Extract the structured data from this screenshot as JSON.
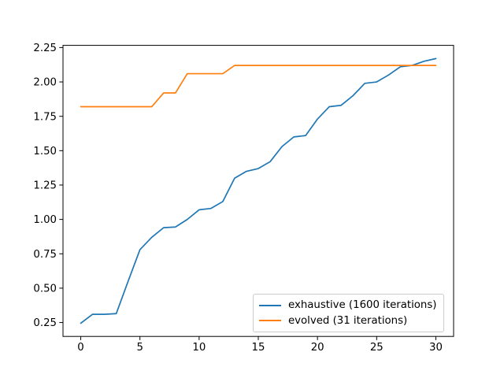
{
  "figure": {
    "background": "#ffffff",
    "axes_edge_color": "#000000",
    "tick_color": "#000000"
  },
  "chart_data": {
    "type": "line",
    "title": "",
    "xlabel": "",
    "ylabel": "",
    "grid": false,
    "xlim": [
      -1.5,
      31.5
    ],
    "ylim": [
      0.149,
      2.266
    ],
    "x_ticks": [
      "0",
      "5",
      "10",
      "15",
      "20",
      "25",
      "30"
    ],
    "x_tick_values": [
      0,
      5,
      10,
      15,
      20,
      25,
      30
    ],
    "y_ticks": [
      "0.25",
      "0.50",
      "0.75",
      "1.00",
      "1.25",
      "1.50",
      "1.75",
      "2.00",
      "2.25"
    ],
    "y_tick_values": [
      0.25,
      0.5,
      0.75,
      1.0,
      1.25,
      1.5,
      1.75,
      2.0,
      2.25
    ],
    "x": [
      0,
      1,
      2,
      3,
      4,
      5,
      6,
      7,
      8,
      9,
      10,
      11,
      12,
      13,
      14,
      15,
      16,
      17,
      18,
      19,
      20,
      21,
      22,
      23,
      24,
      25,
      26,
      27,
      28,
      29,
      30
    ],
    "series": [
      {
        "name": "exhaustive (1600 iterations)",
        "color": "#1f77b4",
        "values": [
          0.245,
          0.31,
          0.31,
          0.315,
          0.55,
          0.78,
          0.87,
          0.94,
          0.945,
          1.0,
          1.07,
          1.08,
          1.13,
          1.3,
          1.35,
          1.37,
          1.42,
          1.53,
          1.6,
          1.61,
          1.73,
          1.82,
          1.83,
          1.9,
          1.99,
          2.0,
          2.05,
          2.11,
          2.12,
          2.15,
          2.17
        ]
      },
      {
        "name": "evolved (31 iterations)",
        "color": "#ff7f0e",
        "values": [
          1.82,
          1.82,
          1.82,
          1.82,
          1.82,
          1.82,
          1.82,
          1.92,
          1.92,
          2.06,
          2.06,
          2.06,
          2.06,
          2.12,
          2.12,
          2.12,
          2.12,
          2.12,
          2.12,
          2.12,
          2.12,
          2.12,
          2.12,
          2.12,
          2.12,
          2.12,
          2.12,
          2.12,
          2.12,
          2.12,
          2.12
        ]
      }
    ],
    "legend": {
      "position": "lower right",
      "entries": [
        "exhaustive (1600 iterations)",
        "evolved (31 iterations)"
      ]
    }
  }
}
